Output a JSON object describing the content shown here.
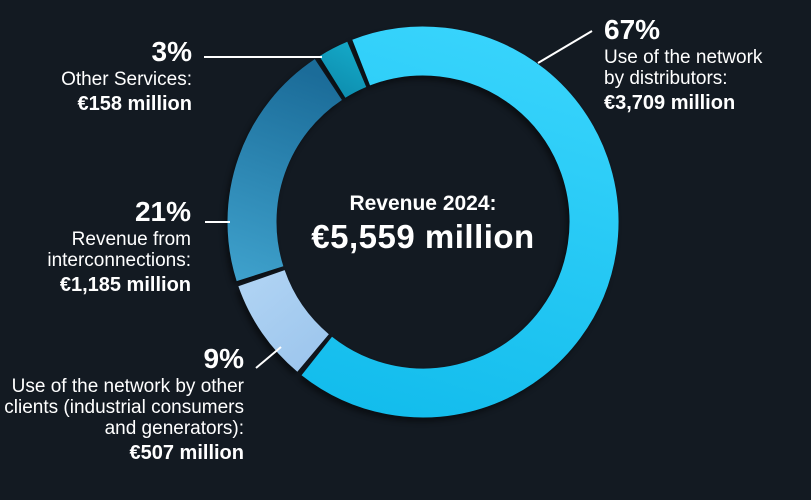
{
  "page": {
    "background": "#131A22",
    "text_color": "#FFFFFF"
  },
  "chart_data": {
    "type": "pie",
    "subtype": "donut",
    "center_title": "Revenue 2024:",
    "center_value": "€5,559 million",
    "total": 5559,
    "units": "€ million",
    "start_angle_deg": 112,
    "direction": "clockwise",
    "legend_position": "callouts",
    "segments": [
      {
        "name": "Use of the network by distributors",
        "pct": 67,
        "value": 3709,
        "value_label": "€3,709 million",
        "color": "#1FC7F3",
        "gradient": [
          "#38D4FC",
          "#12BCEC"
        ]
      },
      {
        "name": "Use of the network by other clients (industrial consumers and generators)",
        "pct": 9,
        "value": 507,
        "value_label": "€507 million",
        "color": "#A3CAEF",
        "gradient": [
          "#AED2F3",
          "#98C2EB"
        ]
      },
      {
        "name": "Revenue from interconnections",
        "pct": 21,
        "value": 1185,
        "value_label": "€1,185 million",
        "color": "#2A8AB8",
        "gradient": [
          "#1B6C99",
          "#3FA2CD"
        ]
      },
      {
        "name": "Other Services",
        "pct": 3,
        "value": 158,
        "value_label": "€158 million",
        "color": "#109CBC",
        "gradient": [
          "#14A7C6",
          "#0C87A9"
        ]
      }
    ]
  },
  "callouts": {
    "distributors": {
      "pct": "67%",
      "desc": "Use of the network\nby distributors:",
      "value": "€3,709 million"
    },
    "other_services": {
      "pct": "3%",
      "desc": "Other Services:",
      "value": "€158 million"
    },
    "interconnections": {
      "pct": "21%",
      "desc": "Revenue from\ninterconnections:",
      "value": "€1,185 million"
    },
    "other_clients": {
      "pct": "9%",
      "desc": "Use of the network by other\nclients (industrial consumers\nand generators):",
      "value": "€507 million"
    }
  }
}
